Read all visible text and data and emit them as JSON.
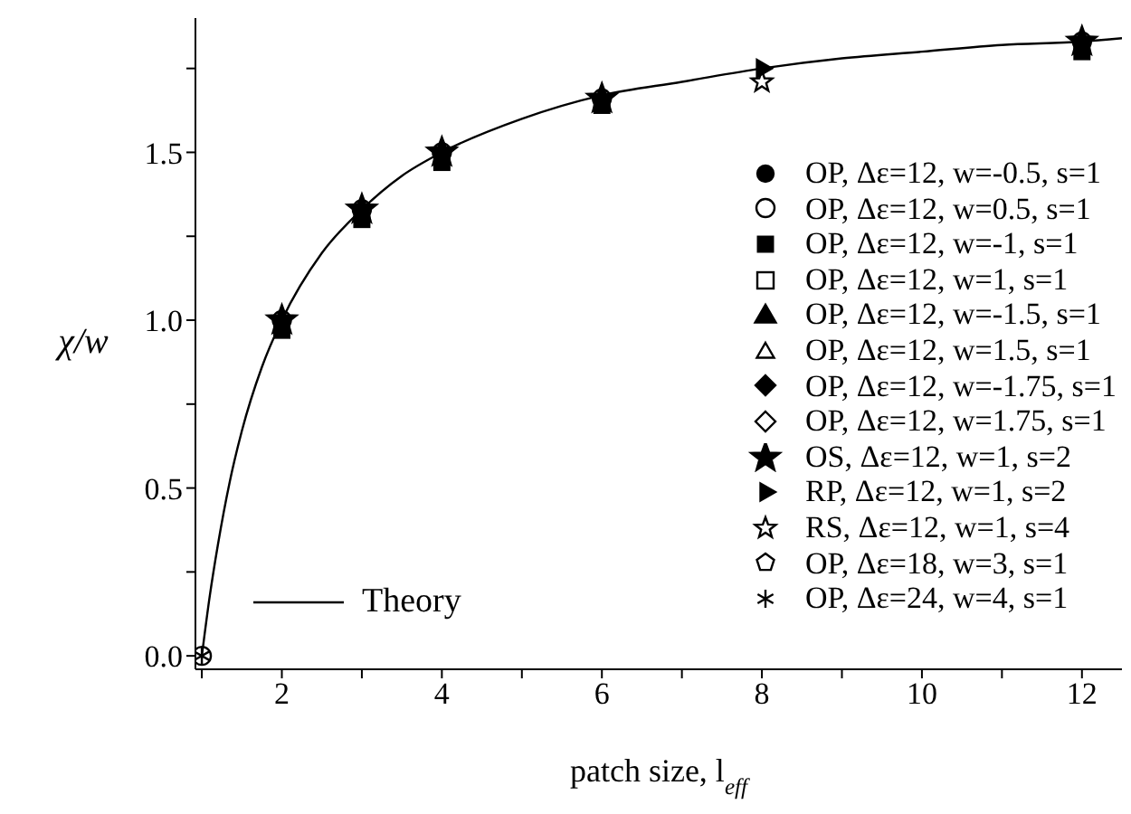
{
  "chart_data": {
    "type": "scatter",
    "xlabel": "patch size, l$_{eff}$",
    "ylabel": "χ/w",
    "xlim": [
      0.92,
      12.5
    ],
    "ylim": [
      -0.04,
      1.9
    ],
    "xticks": [
      {
        "value": 1,
        "label": null
      },
      2,
      {
        "value": 3,
        "label": null
      },
      4,
      {
        "value": 5,
        "label": null
      },
      6,
      {
        "value": 7,
        "label": null
      },
      8,
      {
        "value": 9,
        "label": null
      },
      10,
      {
        "value": 11,
        "label": null
      },
      12
    ],
    "yticks": [
      {
        "value": 0,
        "label": "0.0"
      },
      {
        "value": 0.25,
        "label": null
      },
      {
        "value": 0.5,
        "label": "0.5"
      },
      {
        "value": 0.75,
        "label": null
      },
      {
        "value": 1,
        "label": "1.0"
      },
      {
        "value": 1.25,
        "label": null
      },
      {
        "value": 1.5,
        "label": "1.5"
      },
      {
        "value": 1.75,
        "label": null
      }
    ],
    "grid": false,
    "legend": "right",
    "series": [
      {
        "name": "Theory",
        "type": "line",
        "color": "#000000",
        "marker": "none",
        "line_style": "solid",
        "x": [
          1,
          1.1,
          1.2,
          1.35,
          1.5,
          1.75,
          2,
          2.5,
          3,
          3.5,
          4,
          5,
          6,
          7,
          8,
          9,
          10,
          11,
          12,
          12.5
        ],
        "values": [
          0,
          0.18,
          0.33,
          0.52,
          0.67,
          0.86,
          1.0,
          1.2,
          1.33,
          1.43,
          1.5,
          1.6,
          1.67,
          1.71,
          1.75,
          1.78,
          1.8,
          1.82,
          1.83,
          1.84
        ]
      },
      {
        "name": "OP, Δε=12, w=-0.5, s=1",
        "type": "scatter",
        "color": "#000000",
        "marker": "circle"
      },
      {
        "name": "OP, Δε=12, w=0.5, s=1",
        "type": "scatter",
        "color": "#000000",
        "marker": "circle-open",
        "x": [
          1,
          2,
          3,
          4,
          6,
          12
        ],
        "values": [
          0,
          1.0,
          1.33,
          1.5,
          1.66,
          1.83
        ]
      },
      {
        "name": "OP, Δε=12, w=-1, s=1",
        "type": "scatter",
        "color": "#000000",
        "marker": "square",
        "x": [
          2,
          3,
          4,
          6,
          12
        ],
        "values": [
          0.97,
          1.3,
          1.47,
          1.64,
          1.8
        ]
      },
      {
        "name": "OP, Δε=12, w=1, s=1",
        "type": "scatter",
        "color": "#000000",
        "marker": "square-open"
      },
      {
        "name": "OP, Δε=12, w=-1.5, s=1",
        "type": "scatter",
        "color": "#000000",
        "marker": "triangle"
      },
      {
        "name": "OP, Δε=12, w=1.5, s=1",
        "type": "scatter",
        "color": "#000000",
        "marker": "triangle-open"
      },
      {
        "name": "OP, Δε=12, w=-1.75, s=1",
        "type": "scatter",
        "color": "#000000",
        "marker": "diamond"
      },
      {
        "name": "OP, Δε=12, w=1.75, s=1",
        "type": "scatter",
        "color": "#000000",
        "marker": "diamond-open"
      },
      {
        "name": "OS, Δε=12, w=1, s=2",
        "type": "scatter",
        "color": "#000000",
        "marker": "star",
        "x": [
          2,
          3,
          4,
          6,
          12
        ],
        "values": [
          1.0,
          1.33,
          1.5,
          1.66,
          1.83
        ]
      },
      {
        "name": "RP, Δε=12, w=1, s=2",
        "type": "scatter",
        "color": "#000000",
        "marker": "triangle-right",
        "x": [
          8
        ],
        "values": [
          1.75
        ]
      },
      {
        "name": "RS, Δε=12, w=1, s=4",
        "type": "scatter",
        "color": "#000000",
        "marker": "star-open",
        "x": [
          8
        ],
        "values": [
          1.71
        ]
      },
      {
        "name": "OP, Δε=18, w=3, s=1",
        "type": "scatter",
        "color": "#000000",
        "marker": "pentagon-open"
      },
      {
        "name": "OP, Δε=24, w=4, s=1",
        "type": "scatter",
        "color": "#000000",
        "marker": "cross",
        "x": [
          1
        ],
        "values": [
          0
        ]
      }
    ]
  }
}
